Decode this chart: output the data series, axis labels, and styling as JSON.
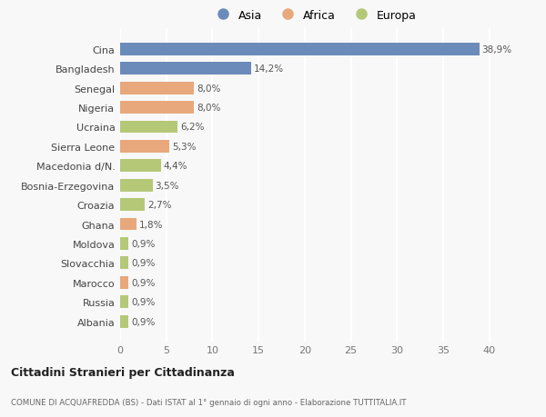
{
  "categories": [
    "Albania",
    "Russia",
    "Marocco",
    "Slovacchia",
    "Moldova",
    "Ghana",
    "Croazia",
    "Bosnia-Erzegovina",
    "Macedonia d/N.",
    "Sierra Leone",
    "Ucraina",
    "Nigeria",
    "Senegal",
    "Bangladesh",
    "Cina"
  ],
  "values": [
    0.9,
    0.9,
    0.9,
    0.9,
    0.9,
    1.8,
    2.7,
    3.5,
    4.4,
    5.3,
    6.2,
    8.0,
    8.0,
    14.2,
    38.9
  ],
  "labels": [
    "0,9%",
    "0,9%",
    "0,9%",
    "0,9%",
    "0,9%",
    "1,8%",
    "2,7%",
    "3,5%",
    "4,4%",
    "5,3%",
    "6,2%",
    "8,0%",
    "8,0%",
    "14,2%",
    "38,9%"
  ],
  "continent": [
    "Europa",
    "Europa",
    "Africa",
    "Europa",
    "Europa",
    "Africa",
    "Europa",
    "Europa",
    "Europa",
    "Africa",
    "Europa",
    "Africa",
    "Africa",
    "Asia",
    "Asia"
  ],
  "colors": {
    "Asia": "#6b8cba",
    "Africa": "#e8a87c",
    "Europa": "#b5c878"
  },
  "xlim": [
    0,
    42
  ],
  "xticks": [
    0,
    5,
    10,
    15,
    20,
    25,
    30,
    35,
    40
  ],
  "title": "Cittadini Stranieri per Cittadinanza",
  "subtitle": "COMUNE DI ACQUAFREDDA (BS) - Dati ISTAT al 1° gennaio di ogni anno - Elaborazione TUTTITALIA.IT",
  "bg_color": "#f8f8f8",
  "grid_color": "#ffffff",
  "bar_height": 0.65
}
